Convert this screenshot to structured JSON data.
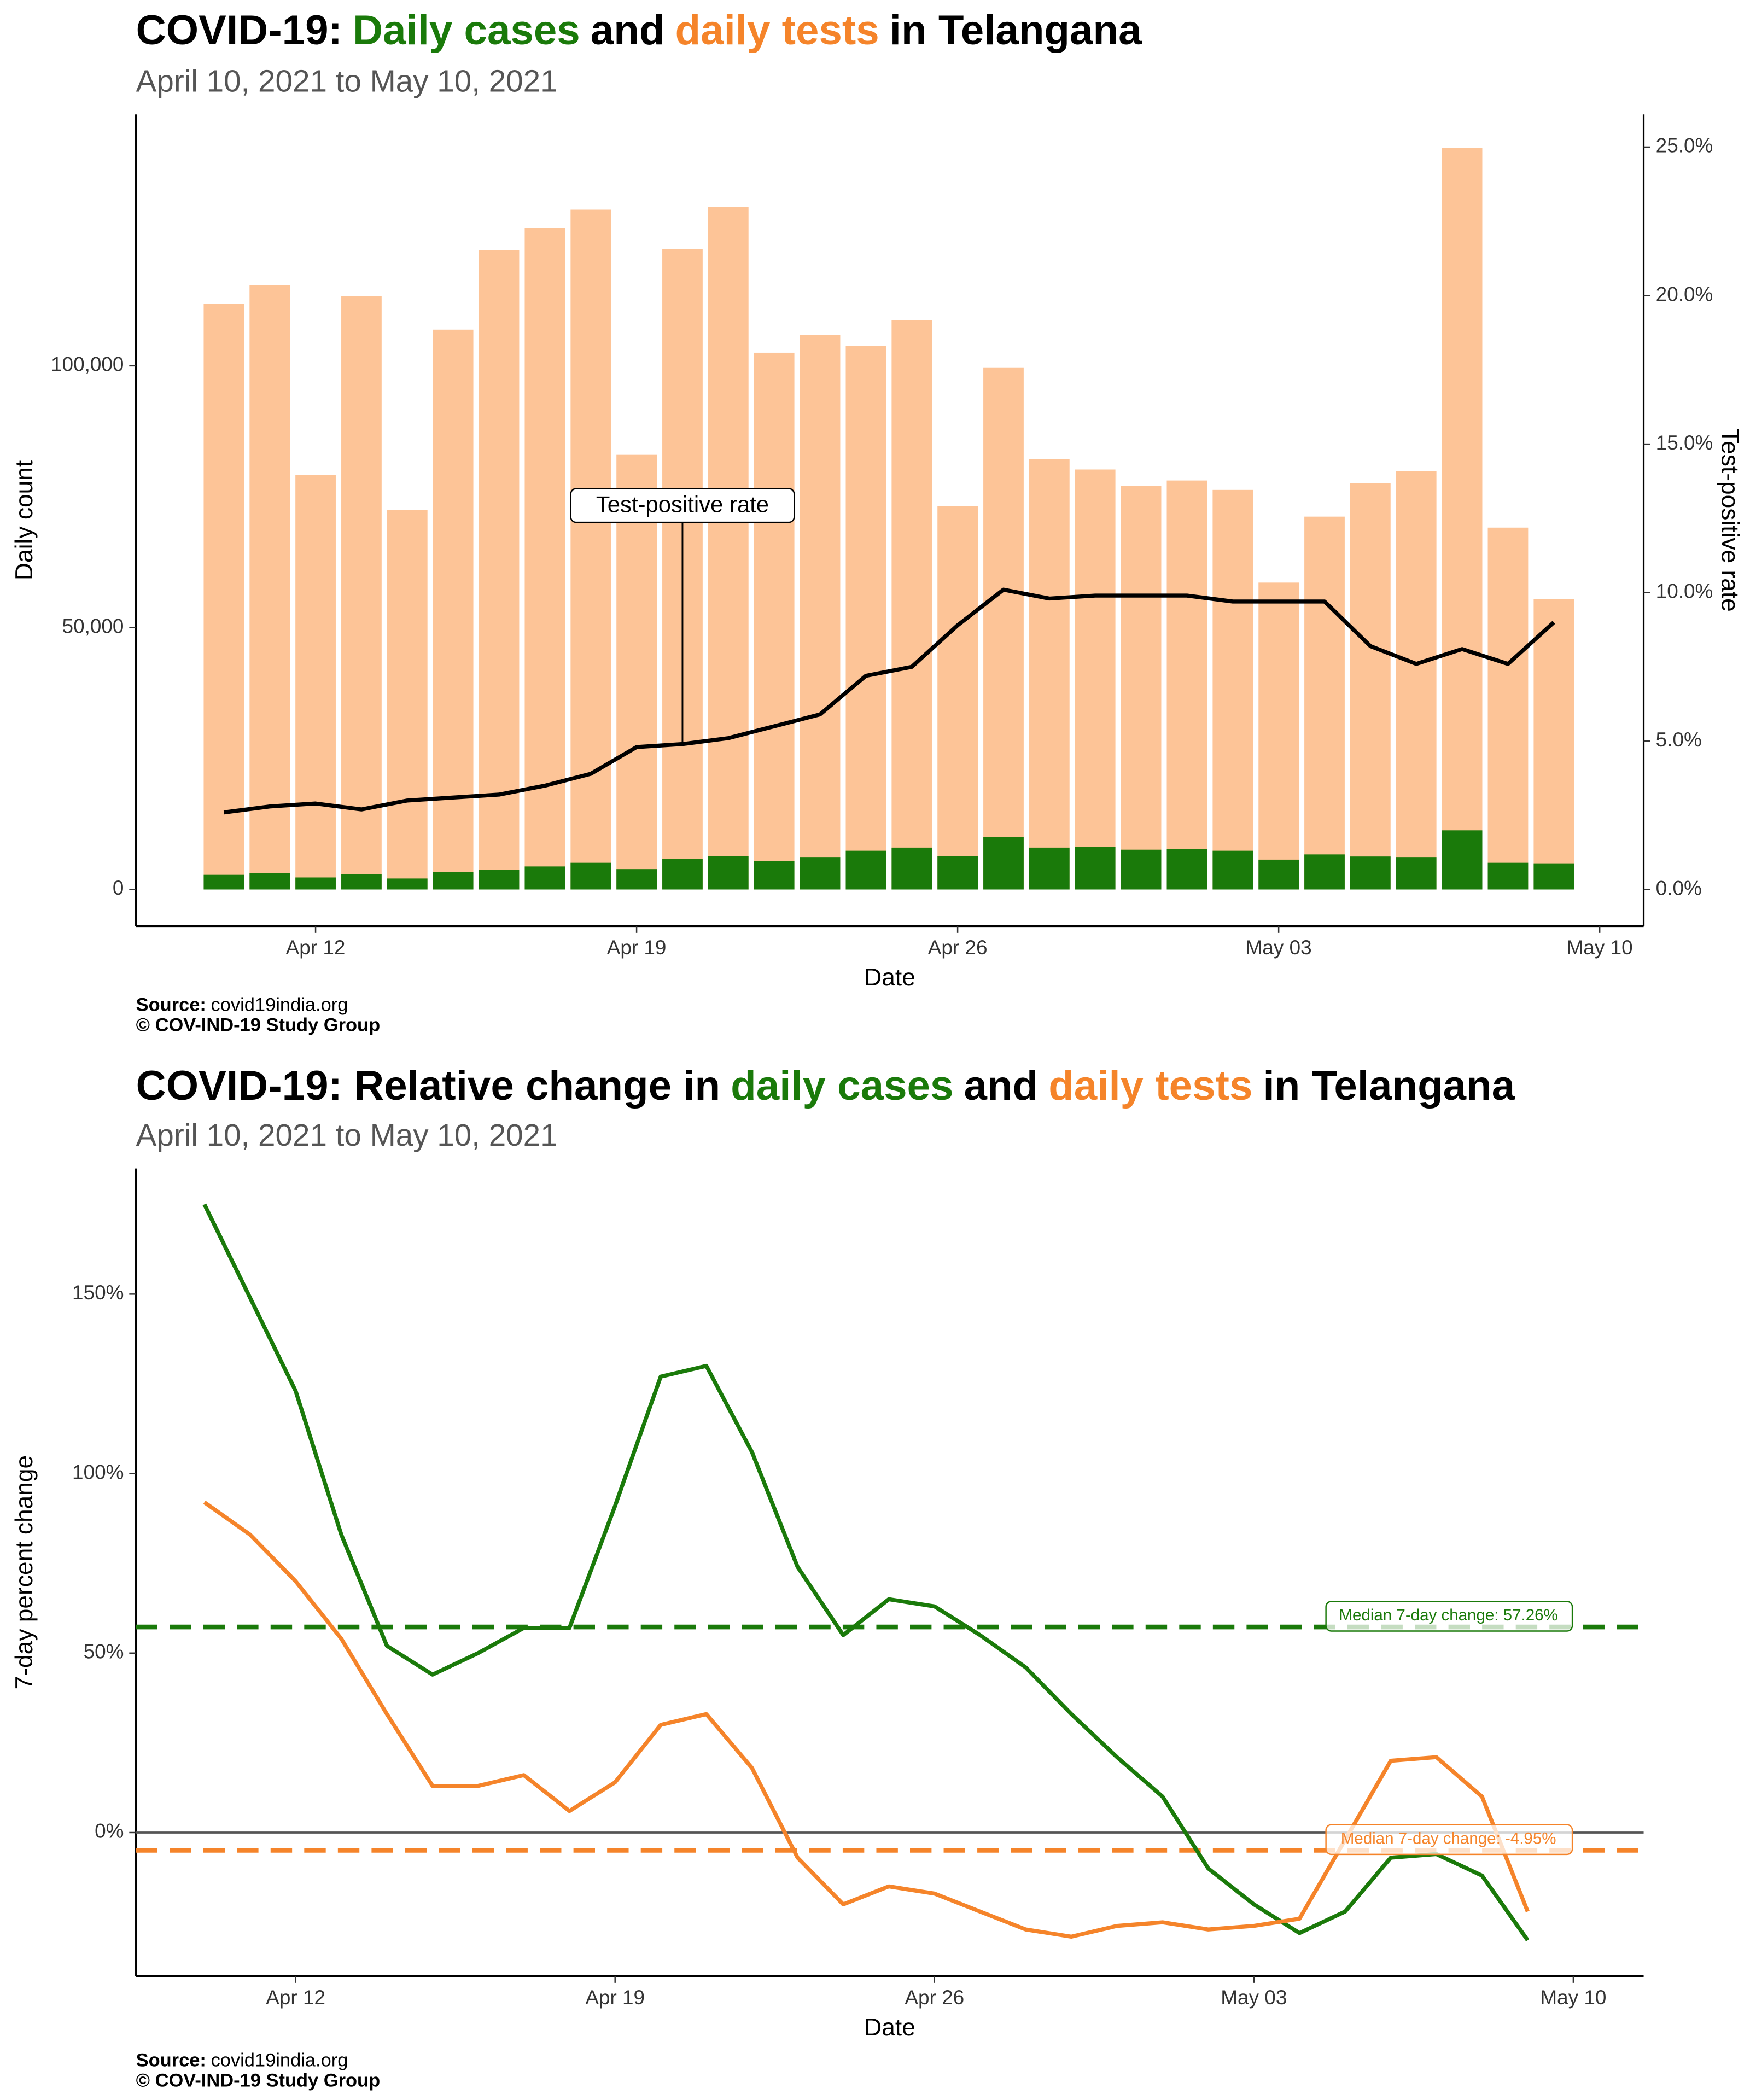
{
  "chart_data": [
    {
      "type": "bar",
      "title": [
        {
          "text": "COVID-19:",
          "color": "#000000"
        },
        {
          "text": "Daily cases",
          "color": "#1a7a0a"
        },
        {
          "text": "and",
          "color": "#000000"
        },
        {
          "text": "daily tests",
          "color": "#f5842a"
        },
        {
          "text": "in Telangana",
          "color": "#000000"
        }
      ],
      "subtitle": "April 10, 2021 to May 10, 2021",
      "x_label": "Date",
      "y_label": "Daily count",
      "y2_label": "Test-positive rate",
      "annotation": "Test-positive rate",
      "source_label": "Source:",
      "source": "covid19india.org",
      "credit": "© COV-IND-19 Study Group",
      "x": [
        "2021-04-10",
        "2021-04-11",
        "2021-04-12",
        "2021-04-13",
        "2021-04-14",
        "2021-04-15",
        "2021-04-16",
        "2021-04-17",
        "2021-04-18",
        "2021-04-19",
        "2021-04-20",
        "2021-04-21",
        "2021-04-22",
        "2021-04-23",
        "2021-04-24",
        "2021-04-25",
        "2021-04-26",
        "2021-04-27",
        "2021-04-28",
        "2021-04-29",
        "2021-04-30",
        "2021-05-01",
        "2021-05-02",
        "2021-05-03",
        "2021-05-04",
        "2021-05-05",
        "2021-05-06",
        "2021-05-07",
        "2021-05-08",
        "2021-05-09"
      ],
      "series": [
        {
          "kind": "bar",
          "color": "#fdc497",
          "values": [
            111800,
            115400,
            79200,
            113300,
            72500,
            106900,
            122100,
            126400,
            129800,
            83000,
            122300,
            130300,
            102500,
            105900,
            103800,
            108700,
            73200,
            99700,
            82200,
            80200,
            77100,
            78100,
            76300,
            58600,
            71200,
            77600,
            79900,
            141600,
            69100,
            55500
          ]
        },
        {
          "kind": "bar",
          "color": "#1a7a0a",
          "values": [
            2800,
            3100,
            2300,
            2900,
            2100,
            3300,
            3800,
            4400,
            5100,
            3900,
            5900,
            6400,
            5400,
            6200,
            7400,
            8000,
            6400,
            10000,
            8000,
            8100,
            7600,
            7700,
            7400,
            5700,
            6700,
            6300,
            6200,
            11300,
            5100,
            5000
          ]
        },
        {
          "kind": "line",
          "axis": "y2",
          "color": "#000000",
          "values": [
            2.6,
            2.8,
            2.9,
            2.7,
            3.0,
            3.1,
            3.2,
            3.5,
            3.9,
            4.8,
            4.9,
            5.1,
            5.5,
            5.9,
            7.2,
            7.5,
            8.9,
            10.1,
            9.8,
            9.9,
            9.9,
            9.9,
            9.7,
            9.7,
            9.7,
            8.2,
            7.6,
            8.1,
            7.6,
            9.0
          ]
        }
      ],
      "xlim": [
        "2021-04-08T02:00",
        "2021-05-10T23:00"
      ],
      "xticks": [
        {
          "value": "2021-04-12",
          "label": "Apr 12"
        },
        {
          "value": "2021-04-19",
          "label": "Apr 19"
        },
        {
          "value": "2021-04-26",
          "label": "Apr 26"
        },
        {
          "value": "2021-05-03",
          "label": "May 03"
        },
        {
          "value": "2021-05-10",
          "label": "May 10"
        }
      ],
      "ylim": [
        -7000,
        148000
      ],
      "yticks": [
        0,
        {
          "value": 50000,
          "label": "50,000"
        },
        {
          "value": 100000,
          "label": "100,000"
        }
      ],
      "y2lim": [
        -1.23,
        26.1
      ],
      "y2ticks": [
        {
          "value": 0,
          "label": "0.0%"
        },
        {
          "value": 5,
          "label": "5.0%"
        },
        {
          "value": 10,
          "label": "10.0%"
        },
        {
          "value": 15,
          "label": "15.0%"
        },
        {
          "value": 20,
          "label": "20.0%"
        },
        {
          "value": 25,
          "label": "25.0%"
        }
      ],
      "grid": false
    },
    {
      "type": "line",
      "title": [
        {
          "text": "COVID-19: Relative change in",
          "color": "#000000"
        },
        {
          "text": "daily cases",
          "color": "#1a7a0a"
        },
        {
          "text": "and",
          "color": "#000000"
        },
        {
          "text": "daily tests",
          "color": "#f5842a"
        },
        {
          "text": "in Telangana",
          "color": "#000000"
        }
      ],
      "subtitle": "April 10, 2021 to May 10, 2021",
      "x_label": "Date",
      "y_label": "7-day percent change",
      "source_label": "Source:",
      "source": "covid19india.org",
      "credit": "© COV-IND-19 Study Group",
      "x": [
        "2021-04-10",
        "2021-04-11",
        "2021-04-12",
        "2021-04-13",
        "2021-04-14",
        "2021-04-15",
        "2021-04-16",
        "2021-04-17",
        "2021-04-18",
        "2021-04-19",
        "2021-04-20",
        "2021-04-21",
        "2021-04-22",
        "2021-04-23",
        "2021-04-24",
        "2021-04-25",
        "2021-04-26",
        "2021-04-27",
        "2021-04-28",
        "2021-04-29",
        "2021-04-30",
        "2021-05-01",
        "2021-05-02",
        "2021-05-03",
        "2021-05-04",
        "2021-05-05",
        "2021-05-06",
        "2021-05-07",
        "2021-05-08",
        "2021-05-09"
      ],
      "series": [
        {
          "kind": "line",
          "color": "#1a7a0a",
          "values": [
            175,
            149,
            123,
            83,
            52,
            44,
            50,
            57,
            57,
            91,
            127,
            130,
            106,
            74,
            55,
            65,
            63,
            55,
            46,
            33,
            21,
            10,
            -10,
            -20,
            -28,
            -22,
            -7,
            -6,
            -12,
            -30
          ]
        },
        {
          "kind": "line",
          "color": "#f5842a",
          "values": [
            92,
            83,
            70,
            54,
            33,
            13,
            13,
            16,
            6,
            14,
            30,
            33,
            18,
            -7,
            -20,
            -15,
            -17,
            -22,
            -27,
            -29,
            -26,
            -25,
            -27,
            -26,
            -24,
            -2,
            20,
            21,
            10,
            -22
          ]
        }
      ],
      "reference_lines": [
        {
          "value": 57.26,
          "label": "Median 7-day change: 57.26%",
          "color": "#1a7a0a"
        },
        {
          "value": -4.95,
          "label": "Median 7-day change: -4.95%",
          "color": "#f5842a"
        }
      ],
      "xlim": [
        "2021-04-08T12:00",
        "2021-05-11T13:00"
      ],
      "xticks": [
        {
          "value": "2021-04-12",
          "label": "Apr 12"
        },
        {
          "value": "2021-04-19",
          "label": "Apr 19"
        },
        {
          "value": "2021-04-26",
          "label": "Apr 26"
        },
        {
          "value": "2021-05-03",
          "label": "May 03"
        },
        {
          "value": "2021-05-10",
          "label": "May 10"
        }
      ],
      "ylim": [
        -40,
        185
      ],
      "yticks": [
        {
          "value": 0,
          "label": "0%"
        },
        {
          "value": 50,
          "label": "50%"
        },
        {
          "value": 100,
          "label": "100%"
        },
        {
          "value": 150,
          "label": "150%"
        }
      ],
      "grid": false
    }
  ]
}
